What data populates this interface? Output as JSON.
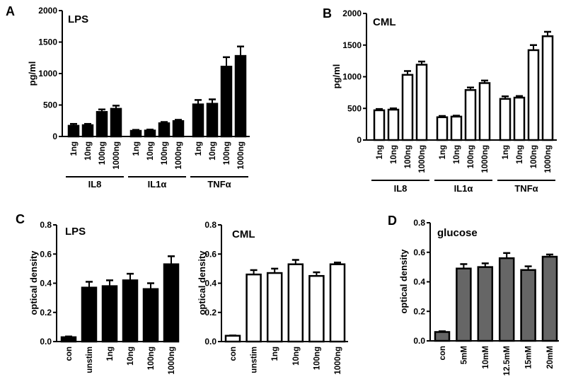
{
  "chart_data": [
    {
      "id": "A",
      "type": "bar",
      "panel_label": "A",
      "title": "LPS",
      "ylabel": "pg/ml",
      "xlabel": "",
      "ylim": [
        0,
        2000
      ],
      "yticks": [
        "0",
        "500",
        "1000",
        "1500",
        "2000"
      ],
      "ytick_values": [
        0,
        500,
        1000,
        1500,
        2000
      ],
      "fill": "#000000",
      "groups": [
        {
          "name": "IL8",
          "categories": [
            "1ng",
            "10ng",
            "100ng",
            "1000ng"
          ],
          "values": [
            170,
            180,
            390,
            440
          ],
          "errors": [
            30,
            20,
            40,
            50
          ]
        },
        {
          "name": "IL1α",
          "categories": [
            "1ng",
            "10ng",
            "100ng",
            "1000ng"
          ],
          "values": [
            90,
            95,
            210,
            245
          ],
          "errors": [
            15,
            15,
            20,
            20
          ]
        },
        {
          "name": "TNFα",
          "categories": [
            "1ng",
            "10ng",
            "100ng",
            "1000ng"
          ],
          "values": [
            510,
            520,
            1110,
            1280
          ],
          "errors": [
            70,
            70,
            150,
            150
          ]
        }
      ]
    },
    {
      "id": "B",
      "type": "bar",
      "panel_label": "B",
      "title": "CML",
      "ylabel": "pg/ml",
      "xlabel": "",
      "ylim": [
        0,
        2000
      ],
      "yticks": [
        "0",
        "500",
        "1000",
        "1500",
        "2000"
      ],
      "ytick_values": [
        0,
        500,
        1000,
        1500,
        2000
      ],
      "fill": "#ffffff",
      "groups": [
        {
          "name": "IL8",
          "categories": [
            "1ng",
            "10ng",
            "100ng",
            "1000ng"
          ],
          "values": [
            470,
            480,
            1030,
            1190
          ],
          "errors": [
            20,
            20,
            60,
            50
          ]
        },
        {
          "name": "IL1α",
          "categories": [
            "1ng",
            "10ng",
            "100ng",
            "1000ng"
          ],
          "values": [
            360,
            370,
            790,
            900
          ],
          "errors": [
            20,
            15,
            40,
            40
          ]
        },
        {
          "name": "TNFα",
          "categories": [
            "1ng",
            "10ng",
            "100ng",
            "1000ng"
          ],
          "values": [
            650,
            670,
            1420,
            1640
          ],
          "errors": [
            40,
            25,
            80,
            70
          ]
        }
      ]
    },
    {
      "id": "C1",
      "type": "bar",
      "panel_label": "C",
      "title": "LPS",
      "ylabel": "optical density",
      "xlabel": "",
      "ylim": [
        0,
        0.8
      ],
      "yticks": [
        "0.0",
        "0.2",
        "0.4",
        "0.6",
        "0.8"
      ],
      "ytick_values": [
        0,
        0.2,
        0.4,
        0.6,
        0.8
      ],
      "fill": "#000000",
      "groups": [
        {
          "name": "",
          "categories": [
            "con",
            "unstim",
            "1ng",
            "10ng",
            "100ng",
            "1000ng"
          ],
          "values": [
            0.03,
            0.37,
            0.38,
            0.42,
            0.36,
            0.53
          ],
          "errors": [
            0.005,
            0.04,
            0.04,
            0.045,
            0.04,
            0.055
          ]
        }
      ]
    },
    {
      "id": "C2",
      "type": "bar",
      "panel_label": "",
      "title": "CML",
      "ylabel": "optical density",
      "xlabel": "",
      "ylim": [
        0,
        0.8
      ],
      "yticks": [
        "0.0",
        "0.2",
        "0.4",
        "0.6",
        "0.8"
      ],
      "ytick_values": [
        0,
        0.2,
        0.4,
        0.6,
        0.8
      ],
      "fill": "#ffffff",
      "groups": [
        {
          "name": "",
          "categories": [
            "con",
            "unstim",
            "1ng",
            "10ng",
            "100ng",
            "1000ng"
          ],
          "values": [
            0.04,
            0.46,
            0.47,
            0.53,
            0.45,
            0.53
          ],
          "errors": [
            0.002,
            0.03,
            0.03,
            0.03,
            0.025,
            0.012
          ]
        }
      ]
    },
    {
      "id": "D",
      "type": "bar",
      "panel_label": "D",
      "title": "glucose",
      "ylabel": "optical density",
      "xlabel": "",
      "ylim": [
        0,
        0.8
      ],
      "yticks": [
        "0.0",
        "0.2",
        "0.4",
        "0.6",
        "0.8"
      ],
      "ytick_values": [
        0,
        0.2,
        0.4,
        0.6,
        0.8
      ],
      "fill": "#666666",
      "groups": [
        {
          "name": "",
          "categories": [
            "con",
            "5mM",
            "10mM",
            "12.5mM",
            "15mM",
            "20mM"
          ],
          "values": [
            0.06,
            0.49,
            0.5,
            0.56,
            0.48,
            0.57
          ],
          "errors": [
            0.005,
            0.03,
            0.025,
            0.035,
            0.025,
            0.015
          ]
        }
      ]
    }
  ]
}
